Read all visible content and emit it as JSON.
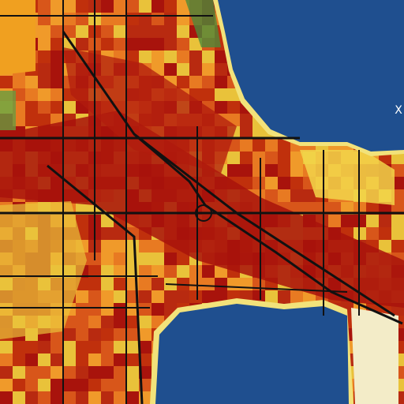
{
  "map": {
    "marker_label": "X"
  }
}
